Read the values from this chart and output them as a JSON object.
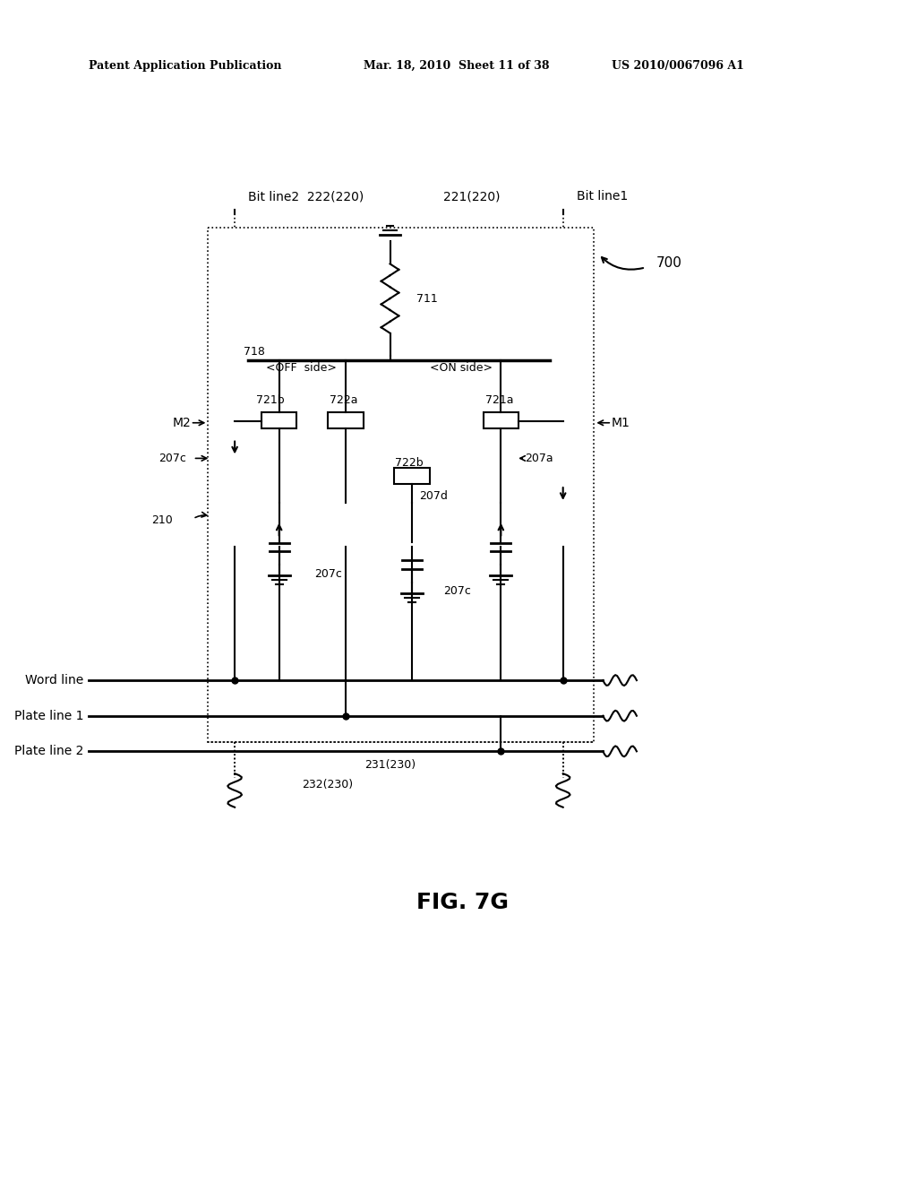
{
  "title_left": "Patent Application Publication",
  "title_mid": "Mar. 18, 2010  Sheet 11 of 38",
  "title_right": "US 2010/0067096 A1",
  "fig_label": "FIG. 7G",
  "background": "#ffffff",
  "line_color": "#000000",
  "dashed_color": "#000000",
  "text_color": "#000000"
}
